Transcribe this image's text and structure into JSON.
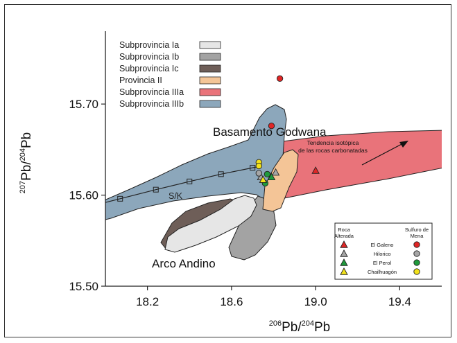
{
  "chart_data": {
    "type": "scatter",
    "xlabel": {
      "pre": "206",
      "mid": "Pb/",
      "sup": "204",
      "post": "Pb"
    },
    "ylabel": {
      "pre": "207",
      "mid": "Pb/",
      "sup": "204",
      "post": "Pb"
    },
    "xlim": [
      18.0,
      19.6
    ],
    "ylim": [
      15.5,
      15.78
    ],
    "xticks": [
      "18.2",
      "18.6",
      "19.0",
      "19.4"
    ],
    "yticks": [
      "15.50",
      "15.60",
      "15.70"
    ],
    "grid": false,
    "legend_position": "top-left",
    "regions": [
      {
        "name": "Subprovincia Ia",
        "color": "#e6e6e6"
      },
      {
        "name": "Subprovincia Ib",
        "color": "#a3a3a3"
      },
      {
        "name": "Subprovincia Ic",
        "color": "#6e5e58"
      },
      {
        "name": "Provincia II",
        "color": "#f4c597"
      },
      {
        "name": "Subprovincia IIIa",
        "color": "#e9737a"
      },
      {
        "name": "Subprovincia IIIb",
        "color": "#8ca7bb"
      }
    ],
    "sk_curve": {
      "label": "S/K",
      "points": [
        [
          18.07,
          15.596
        ],
        [
          18.24,
          15.606
        ],
        [
          18.4,
          15.615
        ],
        [
          18.55,
          15.623
        ],
        [
          18.7,
          15.63
        ]
      ]
    },
    "annotations": {
      "basement": "Basamento Godwana",
      "arc": "Arco Andino",
      "trend": [
        "Tendencia isotópica",
        "de las rocas carbonatadas"
      ]
    },
    "samples_legend": {
      "col_rock": [
        "Roca",
        "Alterada"
      ],
      "col_ore": [
        "Sulfuro de",
        "Mena"
      ],
      "rows": [
        {
          "name": "El Galeno",
          "color": "#e02626"
        },
        {
          "name": "Hilorico",
          "color": "#a6a6a6"
        },
        {
          "name": "El Perol",
          "color": "#1f9a3c"
        },
        {
          "name": "Chailhuagón",
          "color": "#f2e21a"
        }
      ]
    },
    "series": [
      {
        "name": "El Galeno",
        "marker": "triangle",
        "color": "#e02626",
        "points": [
          [
            19.0,
            15.627
          ]
        ]
      },
      {
        "name": "El Galeno",
        "marker": "circle",
        "color": "#e02626",
        "points": [
          [
            18.83,
            15.728
          ],
          [
            18.79,
            15.676
          ]
        ]
      },
      {
        "name": "Hilorico",
        "marker": "triangle",
        "color": "#a6a6a6",
        "points": [
          [
            18.74,
            15.62
          ],
          [
            18.81,
            15.625
          ]
        ]
      },
      {
        "name": "Hilorico",
        "marker": "circle",
        "color": "#a6a6a6",
        "points": [
          [
            18.73,
            15.624
          ]
        ]
      },
      {
        "name": "El Perol",
        "marker": "triangle",
        "color": "#1f9a3c",
        "points": [
          [
            18.79,
            15.62
          ]
        ]
      },
      {
        "name": "El Perol",
        "marker": "circle",
        "color": "#1f9a3c",
        "points": [
          [
            18.77,
            15.623
          ],
          [
            18.76,
            15.613
          ]
        ]
      },
      {
        "name": "Chailhuagón",
        "marker": "triangle",
        "color": "#f2e21a",
        "points": [
          [
            18.75,
            15.617
          ]
        ]
      },
      {
        "name": "Chailhuagón",
        "marker": "circle",
        "color": "#f2e21a",
        "points": [
          [
            18.73,
            15.636
          ],
          [
            18.73,
            15.632
          ]
        ]
      }
    ]
  }
}
